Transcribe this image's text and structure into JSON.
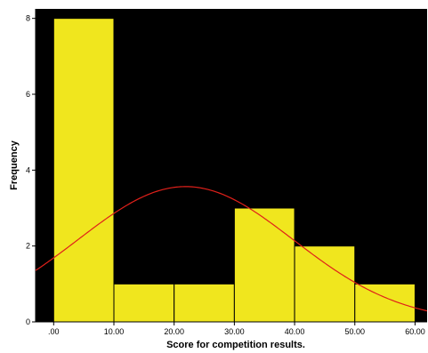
{
  "chart_data": {
    "type": "bar",
    "title": "",
    "xlabel": "Score for competition results.",
    "ylabel": "Frequency",
    "xlim": [
      -3,
      62
    ],
    "ylim": [
      0,
      8.25
    ],
    "x_ticks": [
      0,
      10,
      20,
      30,
      40,
      50,
      60
    ],
    "x_tick_labels": [
      ".00",
      "10.00",
      "20.00",
      "30.00",
      "40.00",
      "50.00",
      "60.00"
    ],
    "y_ticks": [
      0,
      2,
      4,
      6,
      8
    ],
    "y_tick_labels": [
      "0",
      "2",
      "4",
      "6",
      "8"
    ],
    "bins": [
      {
        "from": 0,
        "to": 10,
        "count": 8
      },
      {
        "from": 10,
        "to": 20,
        "count": 1
      },
      {
        "from": 20,
        "to": 30,
        "count": 1
      },
      {
        "from": 30,
        "to": 40,
        "count": 3
      },
      {
        "from": 40,
        "to": 50,
        "count": 2
      },
      {
        "from": 50,
        "to": 60,
        "count": 1
      }
    ],
    "normal_curve": {
      "mean": 21.9,
      "sd": 17.9,
      "n": 16,
      "bin_width": 10
    },
    "grid": false,
    "legend": "none",
    "colors": {
      "plot_bg": "#000000",
      "bar_fill": "#f0e61e",
      "bar_edge": "#000000",
      "curve": "#e0201a",
      "page_bg": "#ffffff"
    }
  }
}
